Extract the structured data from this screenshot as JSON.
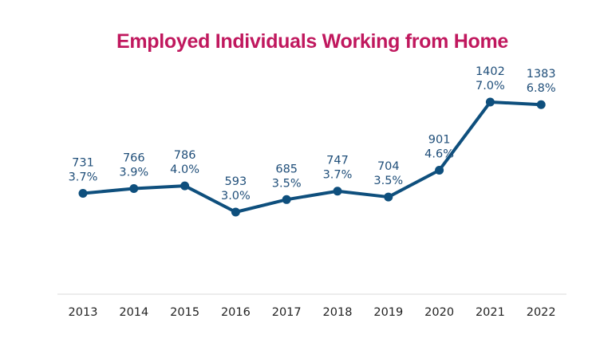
{
  "chart_data": {
    "type": "line",
    "title": "Employed Individuals Working from Home",
    "xlabel": "",
    "ylabel": "",
    "categories": [
      "2013",
      "2014",
      "2015",
      "2016",
      "2017",
      "2018",
      "2019",
      "2020",
      "2021",
      "2022"
    ],
    "series": [
      {
        "values": [
          731,
          766,
          786,
          593,
          685,
          747,
          704,
          901,
          1402,
          1383
        ],
        "percent_labels": [
          "3.7%",
          "3.9%",
          "4.0%",
          "3.0%",
          "3.5%",
          "3.7%",
          "3.5%",
          "4.6%",
          "7.0%",
          "6.8%"
        ]
      }
    ],
    "grid": false,
    "legend": "none",
    "colors": {
      "title": "#c0185e",
      "line": "#0e4f7d",
      "labels": "#1f4e79",
      "axis": "#d9d9d9"
    }
  }
}
